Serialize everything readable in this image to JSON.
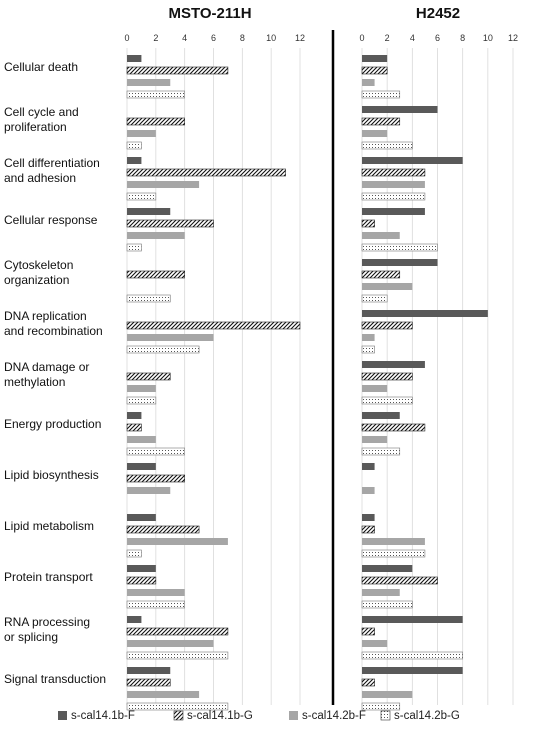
{
  "chart_data": {
    "type": "bar",
    "orientation": "horizontal",
    "xlim": [
      0,
      12
    ],
    "xticks": [
      "0",
      "2",
      "4",
      "6",
      "8",
      "10",
      "12"
    ],
    "grid": true,
    "legend_position": "bottom",
    "categories": [
      "Cellular death",
      "Cell cycle and proliferation",
      "Cell differentiation and adhesion",
      "Cellular response",
      "Cytoskeleton organization",
      "DNA replication and recombination",
      "DNA damage or methylation",
      "Energy production",
      "Lipid biosynthesis",
      "Lipid metabolism",
      "Protein transport",
      "RNA processing or splicing",
      "Signal transduction"
    ],
    "category_lines": [
      [
        "Cellular death"
      ],
      [
        "Cell cycle and",
        "proliferation"
      ],
      [
        "Cell differentiation",
        "and adhesion"
      ],
      [
        "Cellular response"
      ],
      [
        "Cytoskeleton",
        "organization"
      ],
      [
        "DNA replication",
        "and recombination"
      ],
      [
        "DNA damage or",
        "methylation"
      ],
      [
        "Energy production"
      ],
      [
        "Lipid biosynthesis"
      ],
      [
        "Lipid metabolism"
      ],
      [
        "Protein transport"
      ],
      [
        "RNA processing",
        "or splicing"
      ],
      [
        "Signal transduction"
      ]
    ],
    "series_names": [
      "s-cal14.1b-F",
      "s-cal14.1b-G",
      "s-cal14.2b-F",
      "s-cal14.2b-G"
    ],
    "series_colors": [
      "#595959",
      "#ffffff",
      "#a6a6a6",
      "#ffffff"
    ],
    "panels": [
      {
        "title": "MSTO-211H",
        "series": [
          {
            "name": "s-cal14.1b-F",
            "values": [
              1,
              0,
              1,
              3,
              0,
              0,
              0,
              1,
              2,
              2,
              2,
              1,
              3
            ]
          },
          {
            "name": "s-cal14.1b-G",
            "values": [
              7,
              4,
              11,
              6,
              4,
              12,
              3,
              1,
              4,
              5,
              2,
              7,
              3
            ]
          },
          {
            "name": "s-cal14.2b-F",
            "values": [
              3,
              2,
              5,
              4,
              0,
              6,
              2,
              2,
              3,
              7,
              4,
              6,
              5
            ]
          },
          {
            "name": "s-cal14.2b-G",
            "values": [
              4,
              1,
              2,
              1,
              3,
              5,
              2,
              4,
              0,
              1,
              4,
              7,
              7
            ]
          }
        ]
      },
      {
        "title": "H2452",
        "series": [
          {
            "name": "s-cal14.1b-F",
            "values": [
              2,
              6,
              8,
              5,
              6,
              10,
              5,
              3,
              1,
              1,
              4,
              8,
              8
            ]
          },
          {
            "name": "s-cal14.1b-G",
            "values": [
              2,
              3,
              5,
              1,
              3,
              4,
              4,
              5,
              0,
              1,
              6,
              1,
              1
            ]
          },
          {
            "name": "s-cal14.2b-F",
            "values": [
              1,
              2,
              5,
              3,
              4,
              1,
              2,
              2,
              1,
              5,
              3,
              2,
              4
            ]
          },
          {
            "name": "s-cal14.2b-G",
            "values": [
              3,
              4,
              5,
              6,
              2,
              1,
              4,
              3,
              0,
              5,
              4,
              8,
              3
            ]
          }
        ]
      }
    ]
  }
}
